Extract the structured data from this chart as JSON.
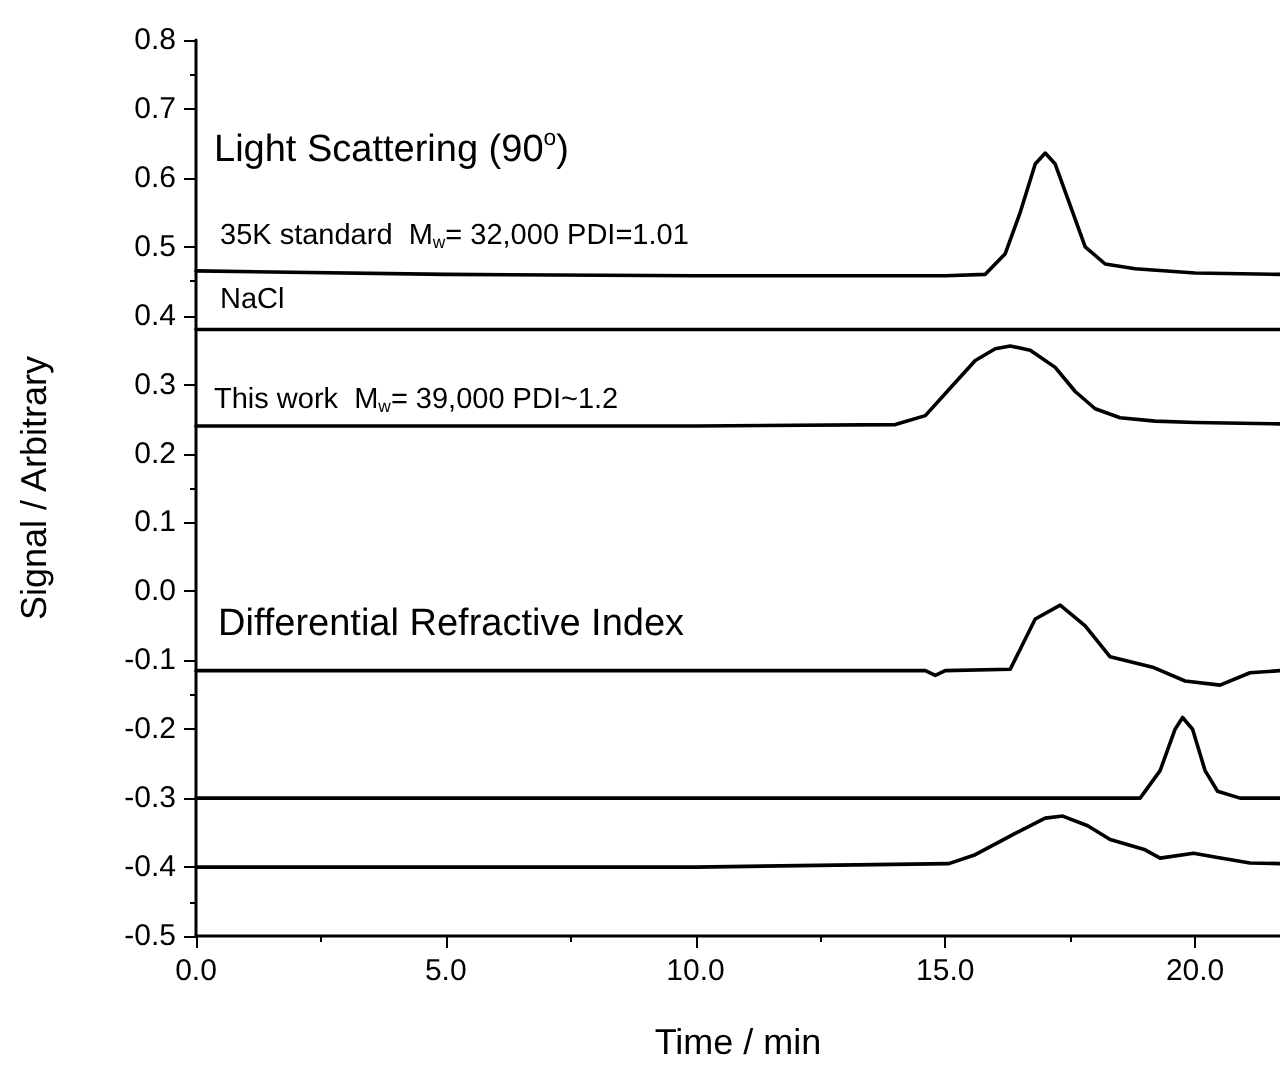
{
  "chart_data": {
    "type": "line",
    "xlabel": "Time / min",
    "ylabel": "Signal / Arbitrary",
    "xlim": [
      0,
      21.7
    ],
    "ylim": [
      -0.5,
      0.8
    ],
    "xticks": [
      {
        "value": 0,
        "label": "0.0"
      },
      {
        "value": 5,
        "label": "5.0"
      },
      {
        "value": 10,
        "label": "10.0"
      },
      {
        "value": 15,
        "label": "15.0"
      },
      {
        "value": 20,
        "label": "20.0"
      }
    ],
    "yticks": [
      -0.5,
      -0.4,
      -0.3,
      -0.2,
      -0.1,
      {
        "value": 0,
        "label": "0.0"
      },
      0.1,
      0.2,
      0.3,
      0.4,
      0.5,
      0.6,
      0.7,
      0.8
    ],
    "grid": false,
    "marker": "none",
    "line_style": "solid",
    "series": [
      {
        "color": "#000000",
        "x": [
          0,
          5,
          10,
          15,
          15.8,
          16.2,
          16.5,
          16.8,
          17.0,
          17.2,
          17.5,
          17.8,
          18.2,
          18.8,
          20,
          21.7
        ],
        "values": [
          0.465,
          0.46,
          0.458,
          0.458,
          0.46,
          0.49,
          0.55,
          0.62,
          0.636,
          0.62,
          0.56,
          0.5,
          0.475,
          0.468,
          0.462,
          0.46
        ]
      },
      {
        "color": "#000000",
        "x": [
          0,
          21.7
        ],
        "values": [
          0.38,
          0.38
        ]
      },
      {
        "color": "#000000",
        "x": [
          0,
          10,
          14.0,
          14.6,
          15.1,
          15.6,
          16.0,
          16.3,
          16.7,
          17.2,
          17.6,
          18.0,
          18.5,
          19.2,
          20,
          21.7
        ],
        "values": [
          0.24,
          0.24,
          0.242,
          0.255,
          0.295,
          0.335,
          0.352,
          0.356,
          0.35,
          0.325,
          0.29,
          0.265,
          0.252,
          0.247,
          0.245,
          0.243
        ]
      },
      {
        "color": "#000000",
        "x": [
          0,
          5,
          10,
          14.6,
          14.8,
          15.0,
          16.3,
          16.8,
          17.3,
          17.8,
          18.3,
          19.15,
          19.8,
          20.5,
          21.1,
          21.7
        ],
        "values": [
          -0.115,
          -0.115,
          -0.115,
          -0.115,
          -0.122,
          -0.115,
          -0.113,
          -0.04,
          -0.02,
          -0.05,
          -0.095,
          -0.11,
          -0.13,
          -0.136,
          -0.118,
          -0.115
        ]
      },
      {
        "color": "#000000",
        "x": [
          0,
          10,
          18.9,
          19.3,
          19.6,
          19.75,
          19.95,
          20.2,
          20.45,
          20.9,
          21.7
        ],
        "values": [
          -0.3,
          -0.3,
          -0.3,
          -0.26,
          -0.2,
          -0.183,
          -0.2,
          -0.26,
          -0.29,
          -0.3,
          -0.3
        ]
      },
      {
        "color": "#000000",
        "x": [
          0,
          10,
          15.07,
          15.6,
          16.4,
          17.0,
          17.35,
          17.85,
          18.3,
          19.0,
          19.3,
          19.97,
          20.45,
          21.1,
          21.7
        ],
        "values": [
          -0.4,
          -0.4,
          -0.395,
          -0.382,
          -0.351,
          -0.329,
          -0.326,
          -0.34,
          -0.36,
          -0.375,
          -0.387,
          -0.38,
          -0.386,
          -0.394,
          -0.395
        ]
      }
    ],
    "annotations": [
      "Light Scattering (90$^{o}$)",
      "35K standard  M$_{w}$= 32,000 PDI=1.01",
      "NaCl",
      "This work  M$_{w}$= 39,000 PDI~1.2",
      "Differential Refractive Index"
    ]
  }
}
